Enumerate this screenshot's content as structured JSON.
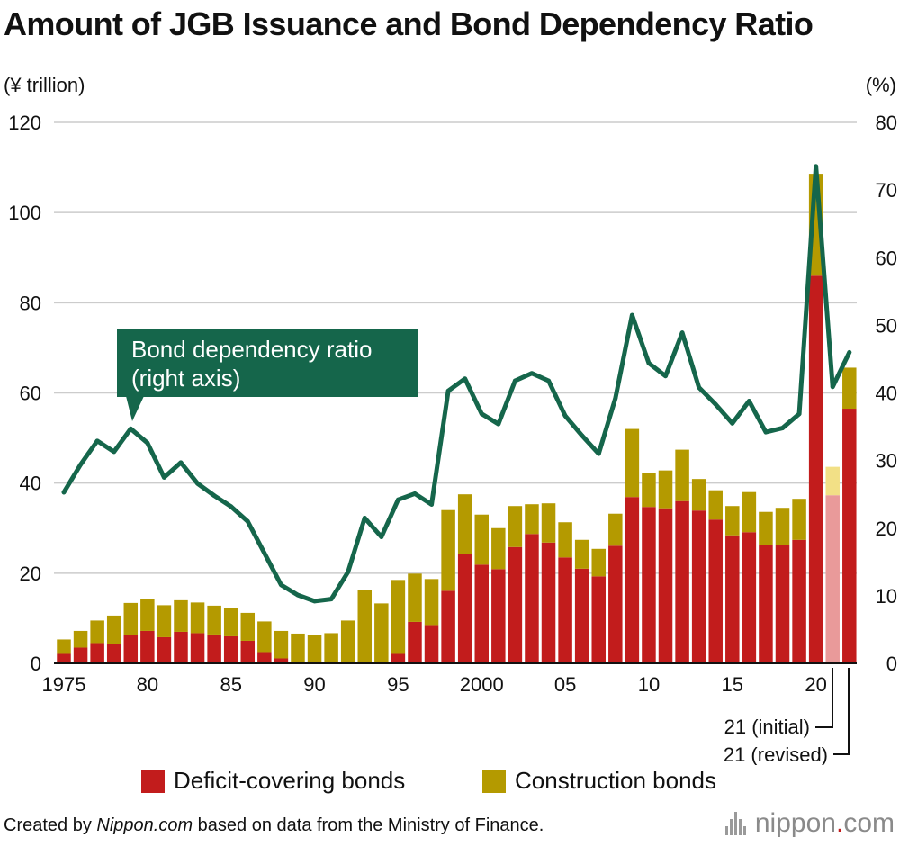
{
  "title": "Amount of JGB Issuance and Bond Dependency Ratio",
  "left_axis_unit": "(¥ trillion)",
  "right_axis_unit": "(%)",
  "callout": {
    "line1": "Bond dependency ratio",
    "line2": "(right axis)"
  },
  "annotations": {
    "initial": "21 (initial)",
    "revised": "21 (revised)"
  },
  "legend": {
    "deficit": "Deficit-covering bonds",
    "construction": "Construction bonds"
  },
  "footer": {
    "prefix": "Created by ",
    "source_name": "Nippon.com",
    "suffix": " based on data from the Ministry of Finance."
  },
  "logo": {
    "name": "nippon",
    "dot": ".",
    "tld": "com"
  },
  "colors": {
    "deficit": "#c21c1c",
    "construction": "#b49a00",
    "deficit_initial": "#e99a9a",
    "construction_initial": "#f2e086",
    "ratio_line": "#15664b",
    "callout_bg": "#15664b",
    "grid": "#cccccc"
  },
  "chart_data": {
    "type": "bar",
    "stacked": true,
    "title": "Amount of JGB Issuance and Bond Dependency Ratio",
    "categories": [
      "1975",
      "1976",
      "1977",
      "1978",
      "1979",
      "1980",
      "1981",
      "1982",
      "1983",
      "1984",
      "1985",
      "1986",
      "1987",
      "1988",
      "1989",
      "1990",
      "1991",
      "1992",
      "1993",
      "1994",
      "1995",
      "1996",
      "1997",
      "1998",
      "1999",
      "2000",
      "2001",
      "2002",
      "2003",
      "2004",
      "2005",
      "2006",
      "2007",
      "2008",
      "2009",
      "2010",
      "2011",
      "2012",
      "2013",
      "2014",
      "2015",
      "2016",
      "2017",
      "2018",
      "2019",
      "2020",
      "2021 (initial)",
      "2021 (revised)"
    ],
    "x_tick_labels": [
      "1975",
      "",
      "",
      "",
      "",
      "80",
      "",
      "",
      "",
      "",
      "85",
      "",
      "",
      "",
      "",
      "90",
      "",
      "",
      "",
      "",
      "95",
      "",
      "",
      "",
      "",
      "2000",
      "",
      "",
      "",
      "",
      "05",
      "",
      "",
      "",
      "",
      "10",
      "",
      "",
      "",
      "",
      "15",
      "",
      "",
      "",
      "",
      "20",
      "",
      ""
    ],
    "series": [
      {
        "name": "Deficit-covering bonds",
        "axis": "left",
        "values": [
          2.1,
          3.5,
          4.5,
          4.3,
          6.3,
          7.2,
          5.8,
          7.0,
          6.7,
          6.4,
          6.0,
          5.0,
          2.5,
          1.1,
          0,
          0,
          0,
          0,
          0,
          0.1,
          2.1,
          9.2,
          8.5,
          16.1,
          24.3,
          21.9,
          20.9,
          25.8,
          28.7,
          26.8,
          23.5,
          21.0,
          19.3,
          26.1,
          36.9,
          34.7,
          34.4,
          36.0,
          33.9,
          31.9,
          28.4,
          29.1,
          26.3,
          26.3,
          27.4,
          86.0,
          37.3,
          56.5
        ]
      },
      {
        "name": "Construction bonds",
        "axis": "left",
        "values": [
          3.2,
          3.7,
          5.0,
          6.3,
          7.1,
          7.0,
          7.1,
          7.0,
          6.8,
          6.4,
          6.3,
          6.2,
          6.8,
          6.1,
          6.6,
          6.3,
          6.7,
          9.5,
          16.2,
          13.2,
          16.4,
          10.7,
          10.2,
          17.9,
          13.2,
          11.1,
          9.1,
          9.1,
          6.6,
          8.7,
          7.8,
          6.4,
          6.1,
          7.1,
          15.1,
          7.6,
          8.4,
          11.4,
          7.0,
          6.5,
          6.5,
          8.9,
          7.3,
          8.2,
          9.1,
          22.6,
          6.3,
          9.1
        ]
      },
      {
        "name": "Bond dependency ratio",
        "axis": "right",
        "type": "line",
        "values": [
          25.3,
          29.4,
          32.9,
          31.3,
          34.7,
          32.6,
          27.5,
          29.7,
          26.6,
          24.8,
          23.2,
          21.0,
          16.3,
          11.6,
          10.1,
          9.2,
          9.5,
          13.5,
          21.5,
          18.7,
          24.2,
          25.1,
          23.5,
          40.3,
          42.1,
          36.9,
          35.4,
          41.8,
          42.9,
          41.8,
          36.6,
          33.7,
          31.0,
          39.2,
          51.5,
          44.4,
          42.5,
          48.9,
          40.8,
          38.3,
          35.5,
          38.8,
          34.2,
          34.8,
          36.9,
          73.5,
          40.9,
          46.0
        ]
      }
    ],
    "ylabel_left": "(¥ trillion)",
    "ylabel_right": "(%)",
    "ylim_left": [
      0,
      120
    ],
    "ylim_right": [
      0,
      80
    ],
    "yticks_left": [
      "0",
      "20",
      "40",
      "60",
      "80",
      "100",
      "120"
    ],
    "yticks_right": [
      "0",
      "10",
      "20",
      "30",
      "40",
      "50",
      "60",
      "70",
      "80"
    ],
    "grid": true,
    "legend_position": "bottom"
  }
}
